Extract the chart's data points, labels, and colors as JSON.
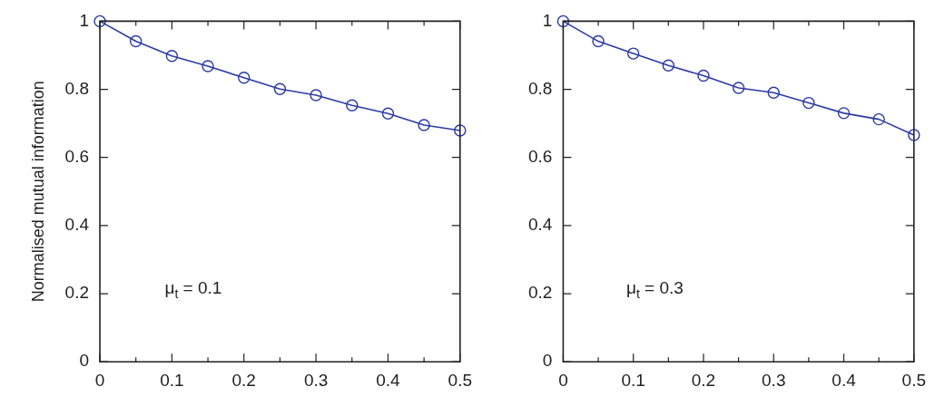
{
  "chart_data": [
    {
      "type": "line",
      "ylabel": "Normalised mutual information",
      "x": [
        0,
        0.05,
        0.1,
        0.15,
        0.2,
        0.25,
        0.3,
        0.35,
        0.4,
        0.45,
        0.5
      ],
      "series": [
        {
          "color": "#2a3aa6",
          "values": [
            1.0,
            0.941,
            0.898,
            0.868,
            0.834,
            0.801,
            0.783,
            0.753,
            0.729,
            0.695,
            0.679
          ]
        }
      ],
      "xlim": [
        0,
        0.5
      ],
      "xticks": [
        0,
        0.1,
        0.2,
        0.3,
        0.4,
        0.5
      ],
      "ylim": [
        0,
        1
      ],
      "yticks": [
        0,
        0.2,
        0.4,
        0.6,
        0.8,
        1
      ],
      "annotations": [
        "μ$_{t}$ = 0.1"
      ],
      "marker": "circle",
      "grid": false,
      "legend": false
    },
    {
      "type": "line",
      "x": [
        0,
        0.05,
        0.1,
        0.15,
        0.2,
        0.25,
        0.3,
        0.35,
        0.4,
        0.45,
        0.5
      ],
      "series": [
        {
          "color": "#2a3aa6",
          "values": [
            1.0,
            0.941,
            0.905,
            0.87,
            0.84,
            0.804,
            0.79,
            0.76,
            0.73,
            0.712,
            0.666
          ]
        }
      ],
      "xlim": [
        0,
        0.5
      ],
      "xticks": [
        0,
        0.1,
        0.2,
        0.3,
        0.4,
        0.5
      ],
      "ylim": [
        0,
        1
      ],
      "yticks": [
        0,
        0.2,
        0.4,
        0.6,
        0.8,
        1
      ],
      "annotations": [
        "μ$_{t}$ = 0.3"
      ],
      "marker": "circle",
      "grid": false,
      "legend": false
    }
  ]
}
